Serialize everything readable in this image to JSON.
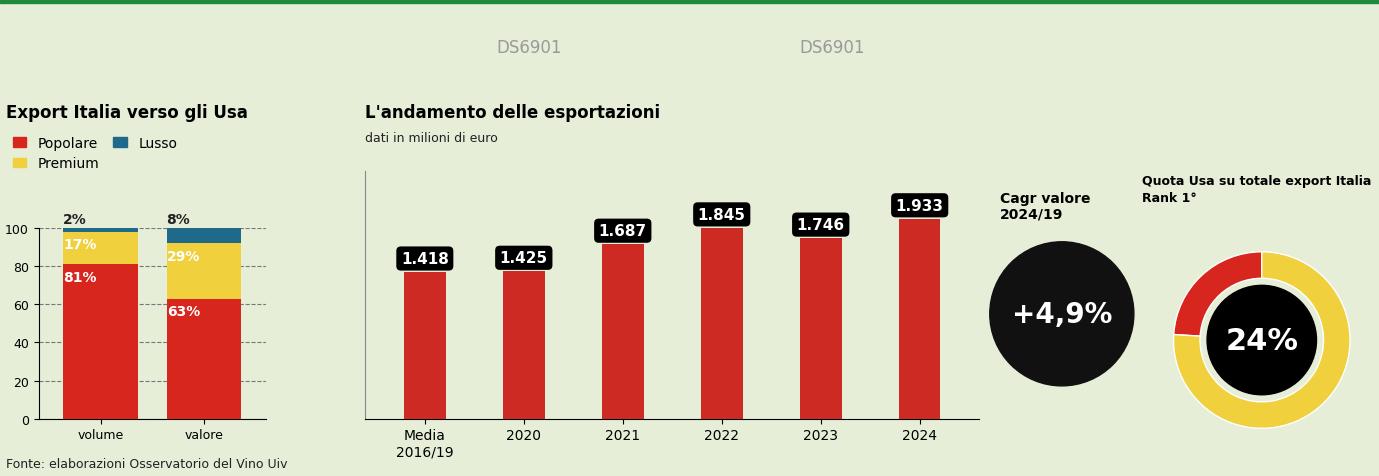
{
  "watermark": "DS6901",
  "source": "Fonte: elaborazioni Osservatorio del Vino Uiv",
  "chart_data": [
    {
      "type": "bar",
      "title": "Export Italia verso gli Usa",
      "categories": [
        "volume",
        "valore"
      ],
      "stacked": true,
      "data_labels": true,
      "grid": true,
      "legend": "upper left",
      "ylim": [
        0,
        100
      ],
      "yticks": [
        0,
        20,
        40,
        60,
        80,
        100
      ],
      "series": [
        {
          "name": "Popolare",
          "color": "#d7261e",
          "values": [
            81,
            63
          ],
          "value_labels": [
            "81%",
            "63%"
          ]
        },
        {
          "name": "Premium",
          "color": "#f0d03c",
          "values": [
            17,
            29
          ],
          "value_labels": [
            "17%",
            "29%"
          ]
        },
        {
          "name": "Lusso",
          "color": "#1f6a8a",
          "values": [
            2,
            8
          ],
          "value_labels": [
            "2%",
            "8%"
          ]
        }
      ]
    },
    {
      "type": "bar",
      "title": "L'andamento delle esportazioni",
      "subtitle": "dati in milioni di euro",
      "categories": [
        "Media\n2016/19",
        "2020",
        "2021",
        "2022",
        "2023",
        "2024"
      ],
      "values": [
        1418,
        1425,
        1687,
        1845,
        1746,
        1933
      ],
      "value_labels": [
        "1.418",
        "1.425",
        "1.687",
        "1.845",
        "1.746",
        "1.933"
      ],
      "color": "#cc2a22",
      "data_labels": true,
      "tick_labels": "x",
      "ylim": [
        0,
        2400
      ]
    },
    {
      "type": "kpi",
      "title": "Cagr valore\n2024/19",
      "label": "+4,9%",
      "color": "#111111"
    },
    {
      "type": "donut",
      "title": "Quota Usa su totale export Italia",
      "subtitle": "Rank 1°",
      "values": [
        24,
        76
      ],
      "colors": [
        "#d7261e",
        "#f0d03c"
      ],
      "center_label": "24%"
    }
  ]
}
